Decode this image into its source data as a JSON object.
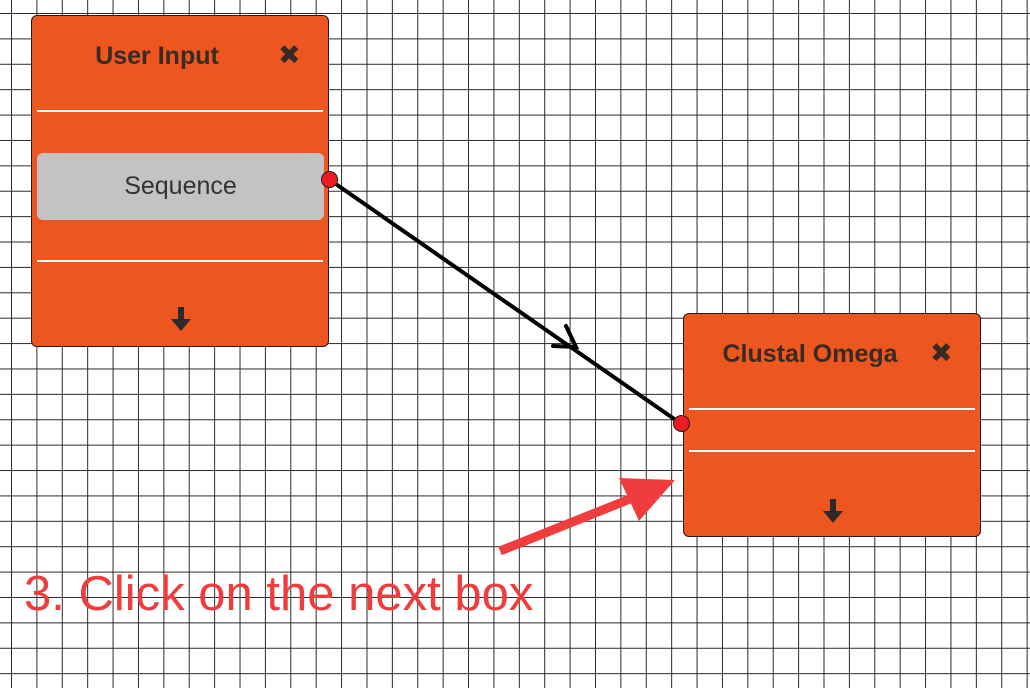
{
  "canvas": {
    "grid_color": "#2a2a2a",
    "background": "#ffffff"
  },
  "nodes": {
    "user_input": {
      "title": "User Input",
      "close_icon": "✖",
      "output_port_label": "Sequence",
      "expand_icon": "arrow-down-icon",
      "color": "#ee561f"
    },
    "clustal_omega": {
      "title": "Clustal Omega",
      "close_icon": "✖",
      "expand_icon": "arrow-down-icon",
      "color": "#ee561f"
    }
  },
  "connection": {
    "from": "user_input.Sequence",
    "to": "clustal_omega",
    "color": "#000000",
    "port_color": "#ec1c24"
  },
  "annotation": {
    "text": "3. Click on the next box",
    "color": "#f03c3c"
  }
}
